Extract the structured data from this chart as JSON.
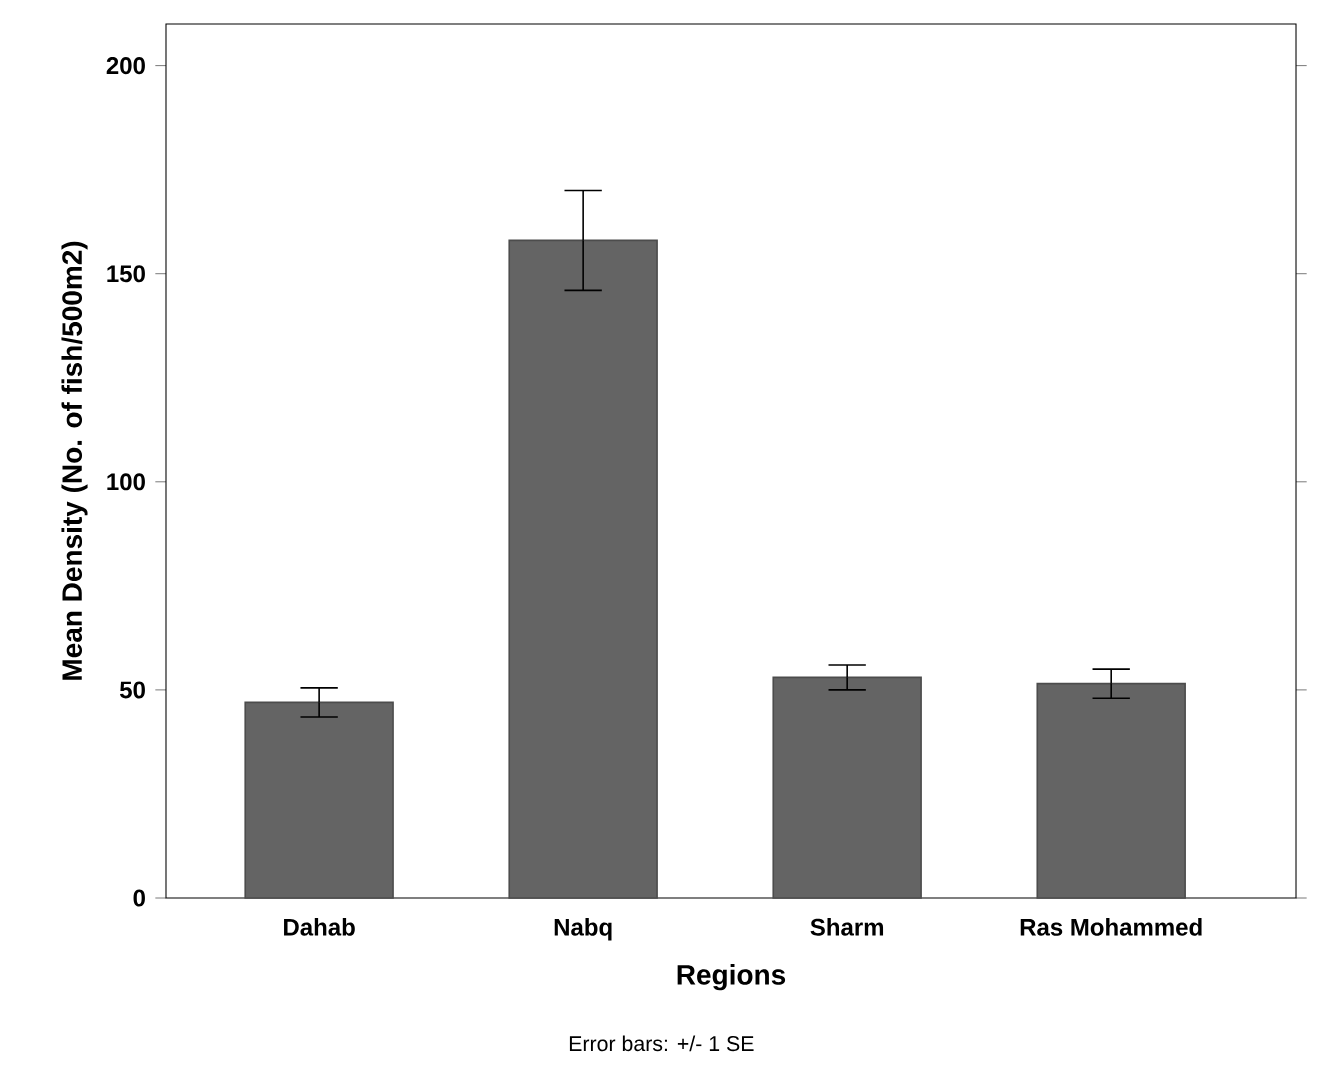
{
  "chart_data": {
    "type": "bar",
    "xlabel": "Regions",
    "ylabel": "Mean Density (No. of fish/500m2)",
    "categories": [
      "Dahab",
      "Nabq",
      "Sharm",
      "Ras Mohammed"
    ],
    "values": [
      47,
      158,
      53,
      51.5
    ],
    "errors": [
      3.5,
      12,
      3,
      3.5
    ],
    "color": "#646464",
    "ylim": [
      0,
      210
    ],
    "yticks": [
      0,
      50,
      100,
      150,
      200
    ],
    "annotations": [
      "Error bars: +/- 1 SE"
    ]
  }
}
